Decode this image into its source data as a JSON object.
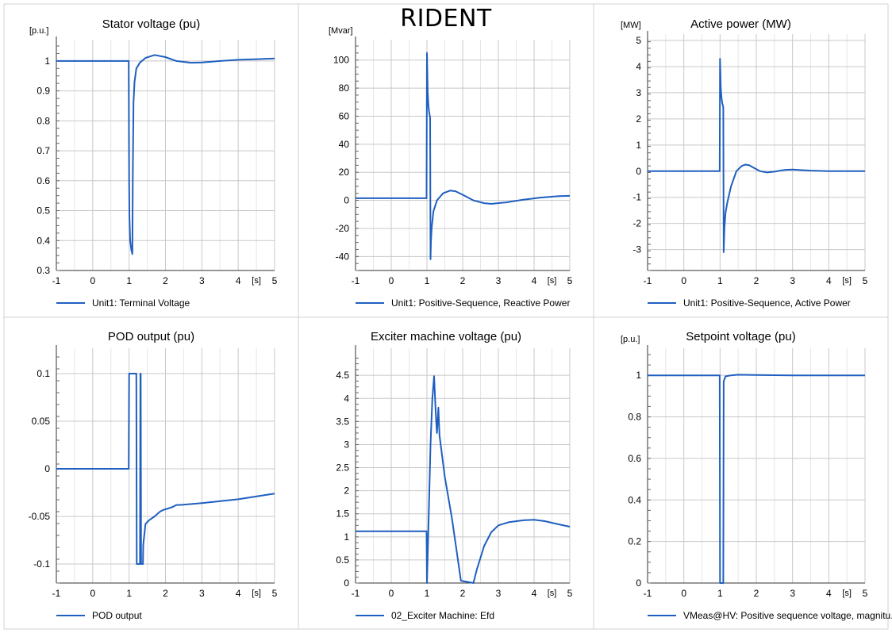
{
  "page": {
    "title": "RIDENT"
  },
  "chart_data": [
    {
      "type": "line",
      "title": "Stator voltage (pu)",
      "ylabel": "[p.u.]",
      "xlabel": "[s]",
      "xlim": [
        -1,
        5
      ],
      "ylim": [
        0.3,
        1.05
      ],
      "yticks": [
        1,
        0.9,
        0.8,
        0.7,
        0.6,
        0.5,
        0.4,
        0.3
      ],
      "ytick_labels": [
        "1",
        "0.9",
        "0.8",
        "0.7",
        "0.6",
        "0.5",
        "0.4",
        "0.3"
      ],
      "xticks": [
        -1,
        0,
        1,
        2,
        3,
        4,
        5
      ],
      "xtick_labels": [
        "-1",
        "0",
        "1",
        "2",
        "3",
        "4",
        "5"
      ],
      "grid": true,
      "legend_position": "bottom",
      "series": [
        {
          "name": "Unit1: Terminal Voltage",
          "color": "#1f5fbf",
          "x": [
            -1,
            0.99,
            1.0,
            1.01,
            1.03,
            1.06,
            1.09,
            1.1,
            1.12,
            1.15,
            1.2,
            1.3,
            1.45,
            1.7,
            2.0,
            2.3,
            2.7,
            3.0,
            3.5,
            4.0,
            4.5,
            5.0
          ],
          "y": [
            1.0,
            1.0,
            0.6,
            0.48,
            0.4,
            0.37,
            0.355,
            0.6,
            0.86,
            0.93,
            0.975,
            0.995,
            1.01,
            1.02,
            1.013,
            1.0,
            0.994,
            0.995,
            1.0,
            1.004,
            1.006,
            1.008
          ]
        }
      ]
    },
    {
      "type": "line",
      "title": "",
      "ylabel": "[Mvar]",
      "xlabel": "[s]",
      "xlim": [
        -1,
        5
      ],
      "ylim": [
        -50,
        110
      ],
      "yticks": [
        100,
        80,
        60,
        40,
        20,
        0,
        -20,
        -40
      ],
      "ytick_labels": [
        "100",
        "80",
        "60",
        "40",
        "20",
        "0",
        "-20",
        "-40"
      ],
      "xticks": [
        -1,
        0,
        1,
        2,
        3,
        4,
        5
      ],
      "xtick_labels": [
        "-1",
        "0",
        "1",
        "2",
        "3",
        "4",
        "5"
      ],
      "grid": true,
      "legend_position": "bottom",
      "series": [
        {
          "name": "Unit1: Positive-Sequence, Reactive Power",
          "color": "#1f5fbf",
          "x": [
            -1,
            0.99,
            1.0,
            1.01,
            1.02,
            1.04,
            1.06,
            1.08,
            1.09,
            1.1,
            1.11,
            1.13,
            1.18,
            1.28,
            1.45,
            1.65,
            1.8,
            2.0,
            2.3,
            2.6,
            2.8,
            3.2,
            3.7,
            4.2,
            4.7,
            5.0
          ],
          "y": [
            1.5,
            1.5,
            105,
            90,
            78,
            68,
            63,
            60,
            59,
            -42,
            -30,
            -20,
            -8,
            0,
            5,
            7,
            6.5,
            4,
            0,
            -2,
            -2.5,
            -1.5,
            0.5,
            2,
            3,
            3.2
          ]
        }
      ]
    },
    {
      "type": "line",
      "title": "Active power (MW)",
      "ylabel": "[MW]",
      "xlabel": "[s]",
      "xlim": [
        -1,
        5
      ],
      "ylim": [
        -3.8,
        5
      ],
      "yticks": [
        5,
        4,
        3,
        2,
        1,
        0,
        -1,
        -2,
        -3
      ],
      "ytick_labels": [
        "5",
        "4",
        "3",
        "2",
        "1",
        "0",
        "-1",
        "-2",
        "-3"
      ],
      "xticks": [
        -1,
        0,
        1,
        2,
        3,
        4,
        5
      ],
      "xtick_labels": [
        "-1",
        "0",
        "1",
        "2",
        "3",
        "4",
        "5"
      ],
      "grid": true,
      "legend_position": "bottom",
      "series": [
        {
          "name": "Unit1: Positive-Sequence, Active Power",
          "color": "#1f5fbf",
          "x": [
            -1,
            0.99,
            1.0,
            1.01,
            1.02,
            1.04,
            1.06,
            1.08,
            1.09,
            1.1,
            1.12,
            1.15,
            1.2,
            1.3,
            1.45,
            1.6,
            1.7,
            1.8,
            1.9,
            2.1,
            2.3,
            2.5,
            2.8,
            3.0,
            3.5,
            4.0,
            5.0
          ],
          "y": [
            0,
            0,
            4.3,
            3.7,
            3.2,
            2.8,
            2.6,
            2.5,
            2.45,
            -3.1,
            -2.2,
            -1.6,
            -1.2,
            -0.6,
            0.0,
            0.2,
            0.25,
            0.23,
            0.15,
            0.0,
            -0.05,
            -0.02,
            0.05,
            0.06,
            0.02,
            0.0,
            0.0
          ]
        }
      ]
    },
    {
      "type": "line",
      "title": "POD output (pu)",
      "ylabel": "",
      "xlabel": "[s]",
      "xlim": [
        -1,
        5
      ],
      "ylim": [
        -0.12,
        0.12
      ],
      "yticks": [
        0.1,
        0.05,
        0,
        -0.05,
        -0.1
      ],
      "ytick_labels": [
        "0.1",
        "0.05",
        "0",
        "-0.05",
        "-0.1"
      ],
      "xticks": [
        -1,
        0,
        1,
        2,
        3,
        4,
        5
      ],
      "xtick_labels": [
        "-1",
        "0",
        "1",
        "2",
        "3",
        "4",
        "5"
      ],
      "grid": true,
      "legend_position": "bottom",
      "series": [
        {
          "name": "POD output",
          "color": "#1f5fbf",
          "x": [
            -1,
            0.99,
            1.0,
            1.2,
            1.21,
            1.3,
            1.31,
            1.32,
            1.33,
            1.34,
            1.38,
            1.39,
            1.45,
            1.55,
            1.7,
            1.85,
            1.95,
            2.05,
            2.2,
            2.3,
            2.4,
            3.0,
            4.0,
            5.0
          ],
          "y": [
            0,
            0,
            0.1,
            0.1,
            -0.1,
            -0.1,
            0.1,
            0.1,
            -0.1,
            -0.1,
            -0.1,
            -0.08,
            -0.058,
            -0.054,
            -0.05,
            -0.045,
            -0.043,
            -0.042,
            -0.04,
            -0.038,
            -0.038,
            -0.036,
            -0.032,
            -0.026
          ]
        }
      ]
    },
    {
      "type": "line",
      "title": "Exciter machine voltage (pu)",
      "ylabel": "",
      "xlabel": "[s]",
      "xlim": [
        -1,
        5
      ],
      "ylim": [
        0,
        4.95
      ],
      "yticks": [
        4.5,
        4,
        3.5,
        3,
        2.5,
        2,
        1.5,
        1,
        0.5,
        0
      ],
      "ytick_labels": [
        "4.5",
        "4",
        "3.5",
        "3",
        "2.5",
        "2",
        "1.5",
        "1",
        "0.5",
        "0"
      ],
      "xticks": [
        -1,
        0,
        1,
        2,
        3,
        4,
        5
      ],
      "xtick_labels": [
        "-1",
        "0",
        "1",
        "2",
        "3",
        "4",
        "5"
      ],
      "grid": true,
      "legend_position": "bottom",
      "series": [
        {
          "name": "02_Exciter Machine: Efd",
          "color": "#1f5fbf",
          "x": [
            -1,
            0.99,
            1.0,
            1.05,
            1.1,
            1.15,
            1.2,
            1.25,
            1.28,
            1.32,
            1.35,
            1.5,
            1.7,
            1.95,
            2.3,
            2.4,
            2.6,
            2.8,
            3.0,
            3.3,
            3.7,
            4.0,
            4.3,
            4.7,
            5.0
          ],
          "y": [
            1.12,
            1.12,
            0,
            1.5,
            3.0,
            4.0,
            4.48,
            3.6,
            3.25,
            3.8,
            3.2,
            2.3,
            1.4,
            0.05,
            0.0,
            0.3,
            0.8,
            1.1,
            1.25,
            1.32,
            1.36,
            1.37,
            1.34,
            1.27,
            1.22
          ]
        }
      ]
    },
    {
      "type": "line",
      "title": "Setpoint voltage (pu)",
      "ylabel": "[p.u.]",
      "xlabel": "[s]",
      "xlim": [
        -1,
        5
      ],
      "ylim": [
        0,
        1.1
      ],
      "yticks": [
        1,
        0.8,
        0.6,
        0.4,
        0.2,
        0
      ],
      "ytick_labels": [
        "1",
        "0.8",
        "0.6",
        "0.4",
        "0.2",
        "0"
      ],
      "xticks": [
        -1,
        0,
        1,
        2,
        3,
        4,
        5
      ],
      "xtick_labels": [
        "-1",
        "0",
        "1",
        "2",
        "3",
        "4",
        "5"
      ],
      "grid": true,
      "legend_position": "bottom",
      "series": [
        {
          "name": "VMeas@HV: Positive sequence voltage, magnitu...",
          "color": "#1f5fbf",
          "x": [
            -1,
            0.99,
            1.0,
            1.09,
            1.1,
            1.15,
            1.3,
            1.5,
            2.0,
            3.0,
            4.0,
            5.0
          ],
          "y": [
            1.0,
            1.0,
            0.0,
            0.0,
            0.97,
            0.995,
            1.0,
            1.003,
            1.002,
            1.0,
            1.0,
            1.0
          ]
        }
      ]
    }
  ]
}
